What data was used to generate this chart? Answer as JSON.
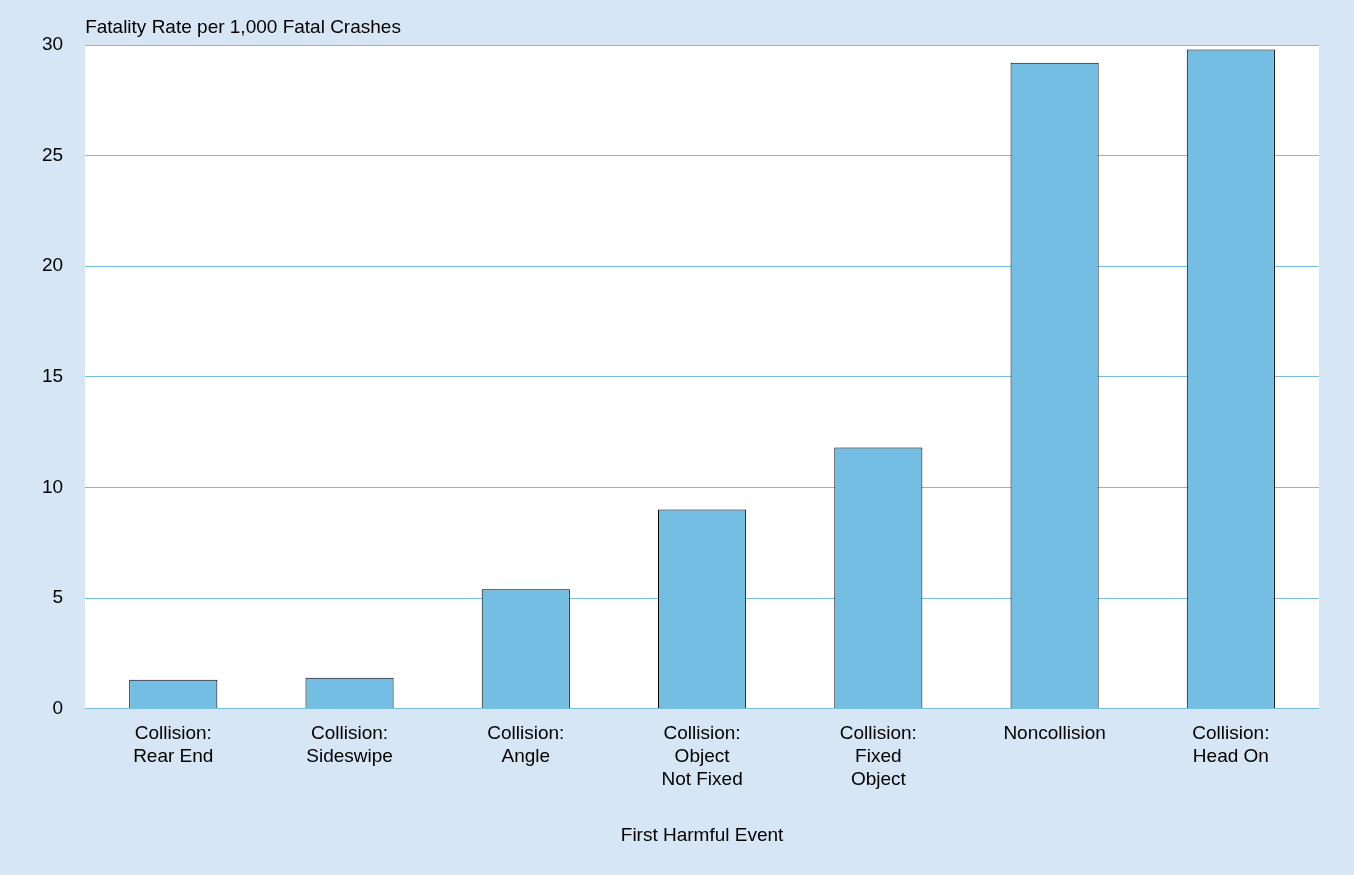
{
  "chart_data": {
    "type": "bar",
    "ylabel": "Fatality Rate per 1,000 Fatal Crashes",
    "xlabel": "First Harmful Event",
    "categories": [
      "Collision:\nRear End",
      "Collision:\nSideswipe",
      "Collision:\nAngle",
      "Collision:\nObject\nNot Fixed",
      "Collision:\nFixed\nObject",
      "Noncollision",
      "Collision:\nHead On"
    ],
    "values": [
      1.3,
      1.4,
      5.4,
      9.0,
      11.8,
      29.2,
      29.8
    ],
    "color": "#74bde3",
    "ylim": [
      0,
      30
    ],
    "yticks": [
      0,
      5,
      10,
      15,
      20,
      25,
      30
    ],
    "grid": "y"
  }
}
